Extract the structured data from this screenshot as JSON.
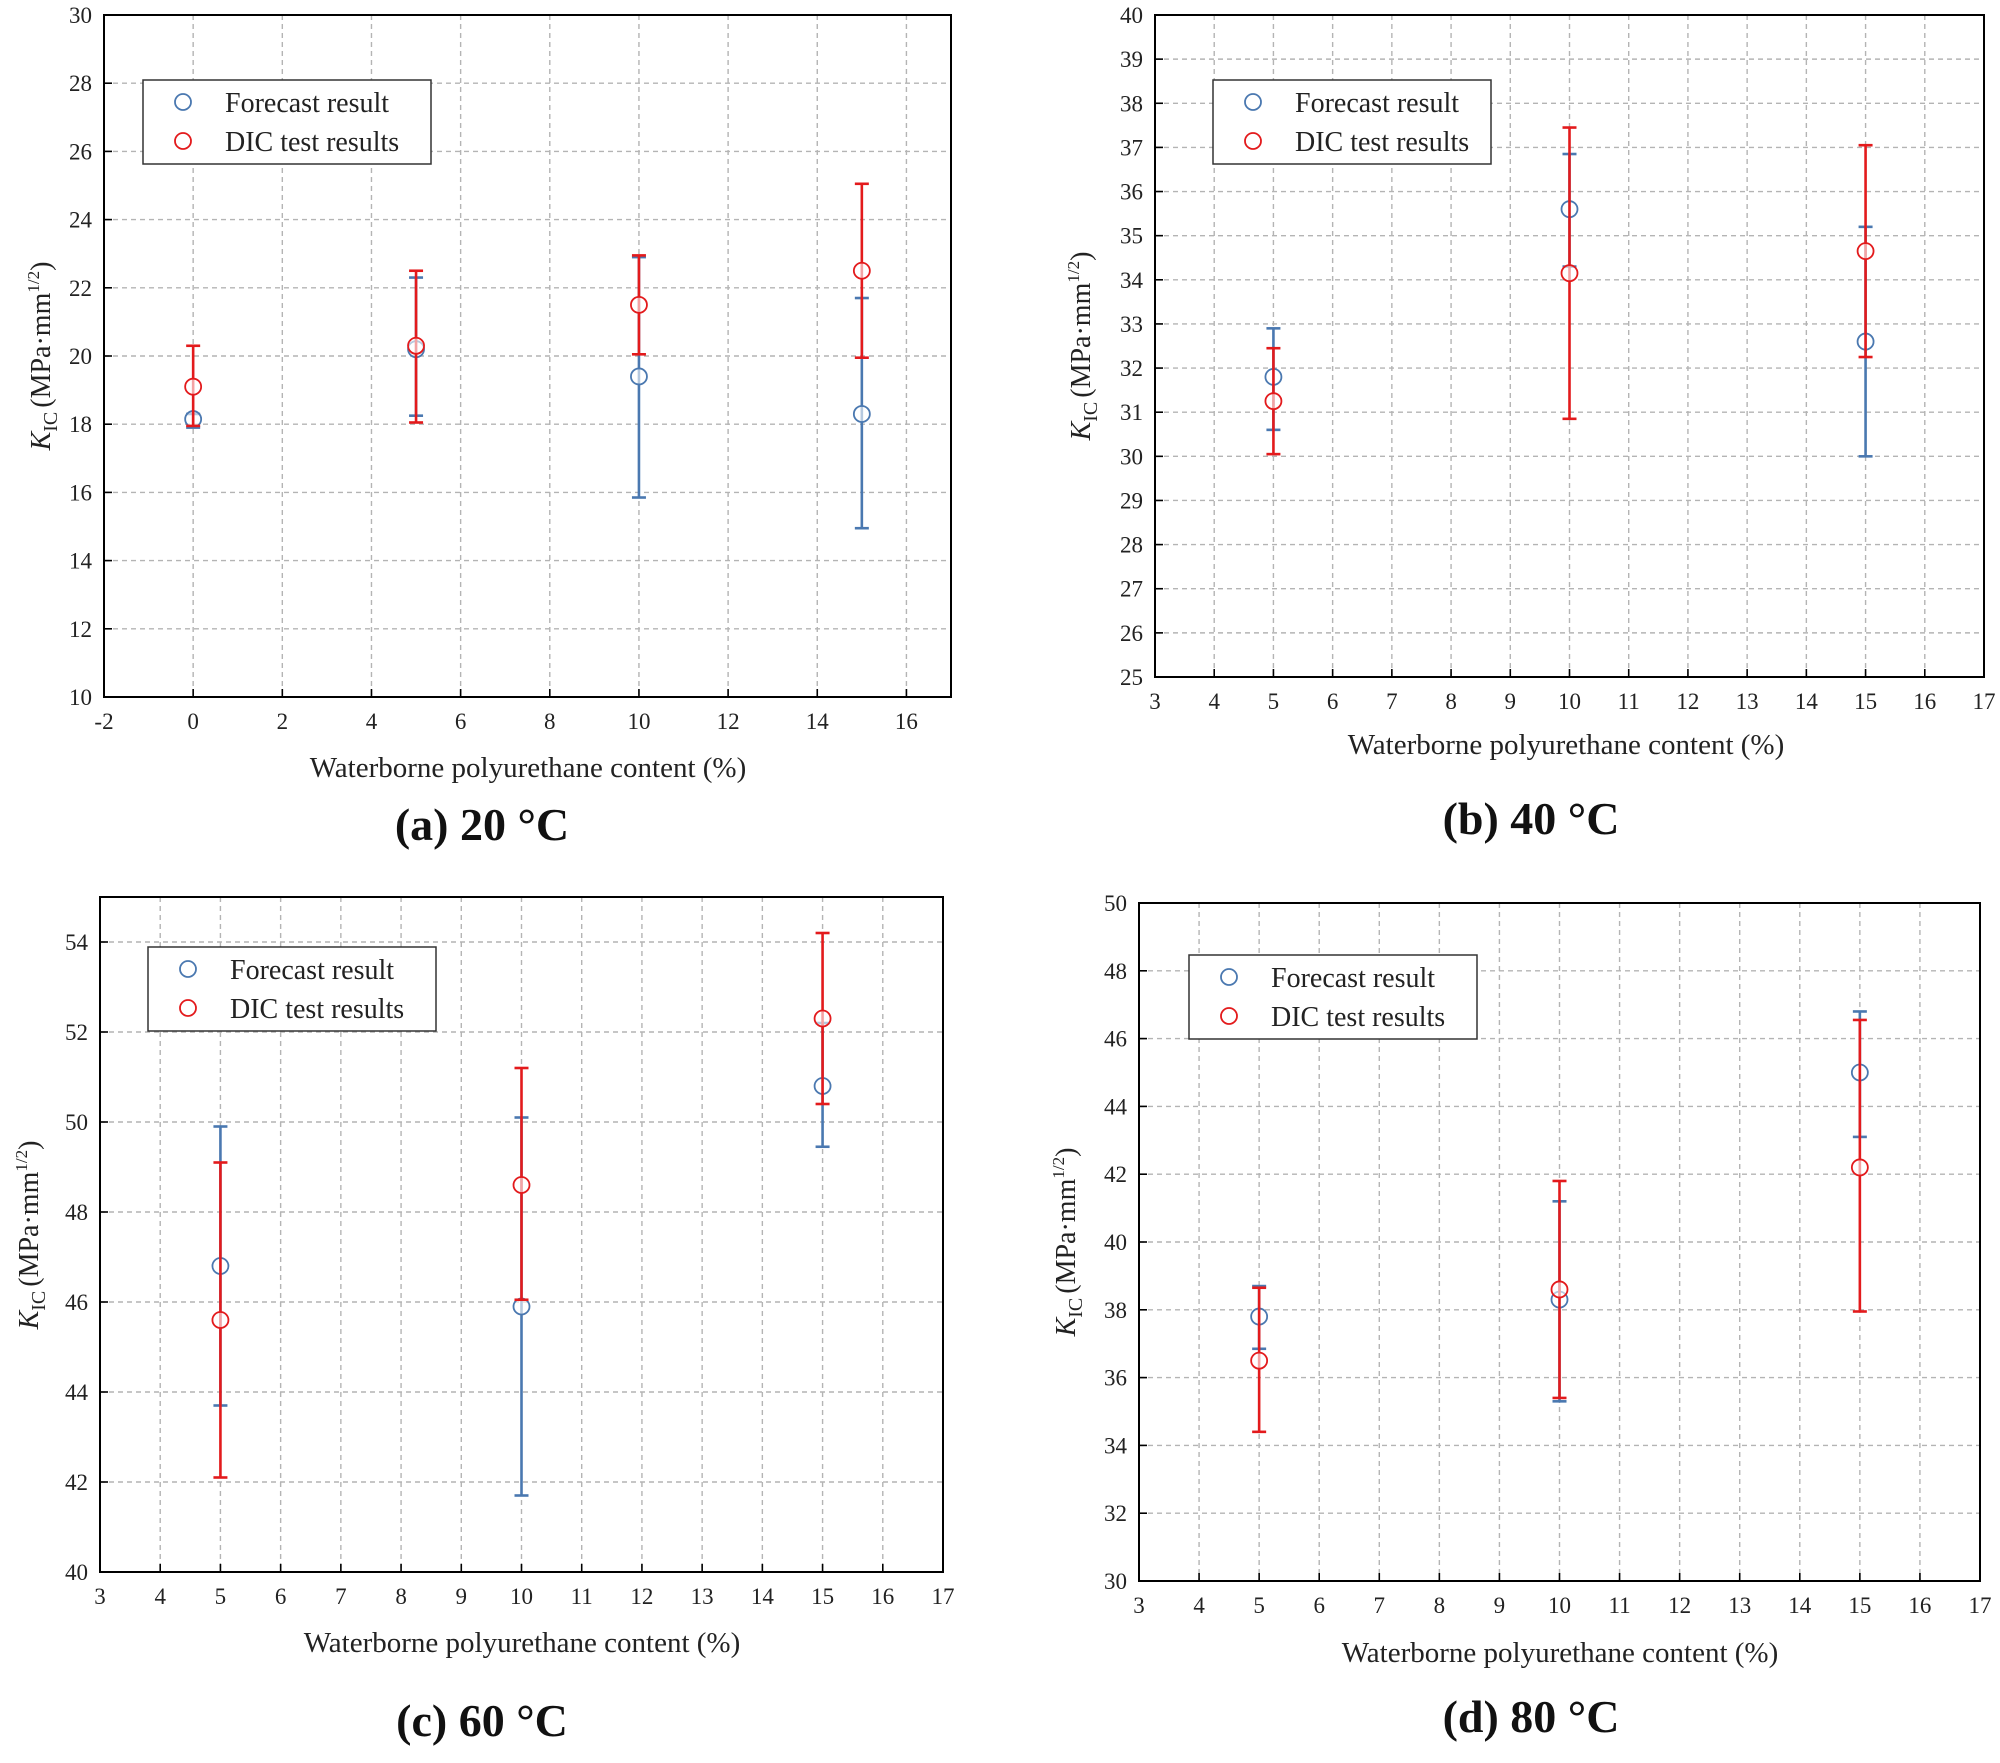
{
  "colors": {
    "forecast": "#4a78b0",
    "dic": "#e31a1c",
    "grid": "#b4b4b4",
    "axis": "#000000"
  },
  "chart_data": [
    {
      "type": "scatter",
      "caption": "(a) 20 °C",
      "xlabel": "Waterborne polyurethane content (%)",
      "ylabel": {
        "k": "K",
        "sub": "IC",
        "unit": "(MPa·mm",
        "sup": "1/2",
        "close": ")"
      },
      "xlim": [
        -2,
        17
      ],
      "ylim": [
        10,
        30
      ],
      "xticks": [
        -2,
        0,
        2,
        4,
        6,
        8,
        10,
        12,
        14,
        16
      ],
      "yticks": [
        10,
        12,
        14,
        16,
        18,
        20,
        22,
        24,
        26,
        28,
        30
      ],
      "grid": true,
      "legend": "top-left",
      "series": [
        {
          "name": "Forecast result",
          "x": [
            0,
            5,
            10,
            15
          ],
          "y": [
            18.15,
            20.2,
            19.4,
            18.3
          ],
          "err_low": [
            17.9,
            18.25,
            15.85,
            14.95
          ],
          "err_high": [
            18.3,
            22.3,
            22.9,
            21.7
          ]
        },
        {
          "name": "DIC test results",
          "x": [
            0,
            5,
            10,
            15
          ],
          "y": [
            19.1,
            20.3,
            21.5,
            22.5
          ],
          "err_low": [
            17.95,
            18.05,
            20.05,
            19.95
          ],
          "err_high": [
            20.3,
            22.5,
            22.95,
            25.05
          ]
        }
      ]
    },
    {
      "type": "scatter",
      "caption": "(b) 40 °C",
      "xlabel": "Waterborne polyurethane content (%)",
      "ylabel": {
        "k": "K",
        "sub": "IC",
        "unit": "(MPa·mm",
        "sup": "1/2",
        "close": ")"
      },
      "xlim": [
        3,
        17
      ],
      "ylim": [
        25,
        40
      ],
      "xticks": [
        3,
        4,
        5,
        6,
        7,
        8,
        9,
        10,
        11,
        12,
        13,
        14,
        15,
        16,
        17
      ],
      "yticks": [
        25,
        26,
        27,
        28,
        29,
        30,
        31,
        32,
        33,
        34,
        35,
        36,
        37,
        38,
        39,
        40
      ],
      "grid": true,
      "legend": "top-left",
      "series": [
        {
          "name": "Forecast result",
          "x": [
            5,
            10,
            15
          ],
          "y": [
            31.8,
            35.6,
            32.6
          ],
          "err_low": [
            30.6,
            34.3,
            30.0
          ],
          "err_high": [
            32.9,
            36.85,
            35.2
          ]
        },
        {
          "name": "DIC test results",
          "x": [
            5,
            10,
            15
          ],
          "y": [
            31.25,
            34.15,
            34.65
          ],
          "err_low": [
            30.05,
            30.85,
            32.25
          ],
          "err_high": [
            32.45,
            37.45,
            37.05
          ]
        }
      ]
    },
    {
      "type": "scatter",
      "caption": "(c) 60 °C",
      "xlabel": "Waterborne polyurethane content (%)",
      "ylabel": {
        "k": "K",
        "sub": "IC",
        "unit": "(MPa·mm",
        "sup": "1/2",
        "close": ")"
      },
      "xlim": [
        3,
        17
      ],
      "ylim": [
        40,
        55
      ],
      "xticks": [
        3,
        4,
        5,
        6,
        7,
        8,
        9,
        10,
        11,
        12,
        13,
        14,
        15,
        16,
        17
      ],
      "yticks": [
        40,
        42,
        44,
        46,
        48,
        50,
        52,
        54
      ],
      "grid": true,
      "legend": "top-left",
      "series": [
        {
          "name": "Forecast result",
          "x": [
            5,
            10,
            15
          ],
          "y": [
            46.8,
            45.9,
            50.8
          ],
          "err_low": [
            43.7,
            41.7,
            49.45
          ],
          "err_high": [
            49.9,
            50.1,
            52.2
          ]
        },
        {
          "name": "DIC test results",
          "x": [
            5,
            10,
            15
          ],
          "y": [
            45.6,
            48.6,
            52.3
          ],
          "err_low": [
            42.1,
            46.05,
            50.4
          ],
          "err_high": [
            49.1,
            51.2,
            54.2
          ]
        }
      ]
    },
    {
      "type": "scatter",
      "caption": "(d) 80 °C",
      "xlabel": "Waterborne polyurethane content (%)",
      "ylabel": {
        "k": "K",
        "sub": "IC",
        "unit": "(MPa·mm",
        "sup": "1/2",
        "close": ")"
      },
      "xlim": [
        3,
        17
      ],
      "ylim": [
        30,
        50
      ],
      "xticks": [
        3,
        4,
        5,
        6,
        7,
        8,
        9,
        10,
        11,
        12,
        13,
        14,
        15,
        16,
        17
      ],
      "yticks": [
        30,
        32,
        34,
        36,
        38,
        40,
        42,
        44,
        46,
        48,
        50
      ],
      "grid": true,
      "legend": "top-left",
      "series": [
        {
          "name": "Forecast result",
          "x": [
            5,
            10,
            15
          ],
          "y": [
            37.8,
            38.3,
            45.0
          ],
          "err_low": [
            36.85,
            35.3,
            43.1
          ],
          "err_high": [
            38.7,
            41.2,
            46.8
          ]
        },
        {
          "name": "DIC test results",
          "x": [
            5,
            10,
            15
          ],
          "y": [
            36.5,
            38.6,
            42.2
          ],
          "err_low": [
            34.4,
            35.4,
            37.95
          ],
          "err_high": [
            38.65,
            41.8,
            46.55
          ]
        }
      ]
    }
  ]
}
